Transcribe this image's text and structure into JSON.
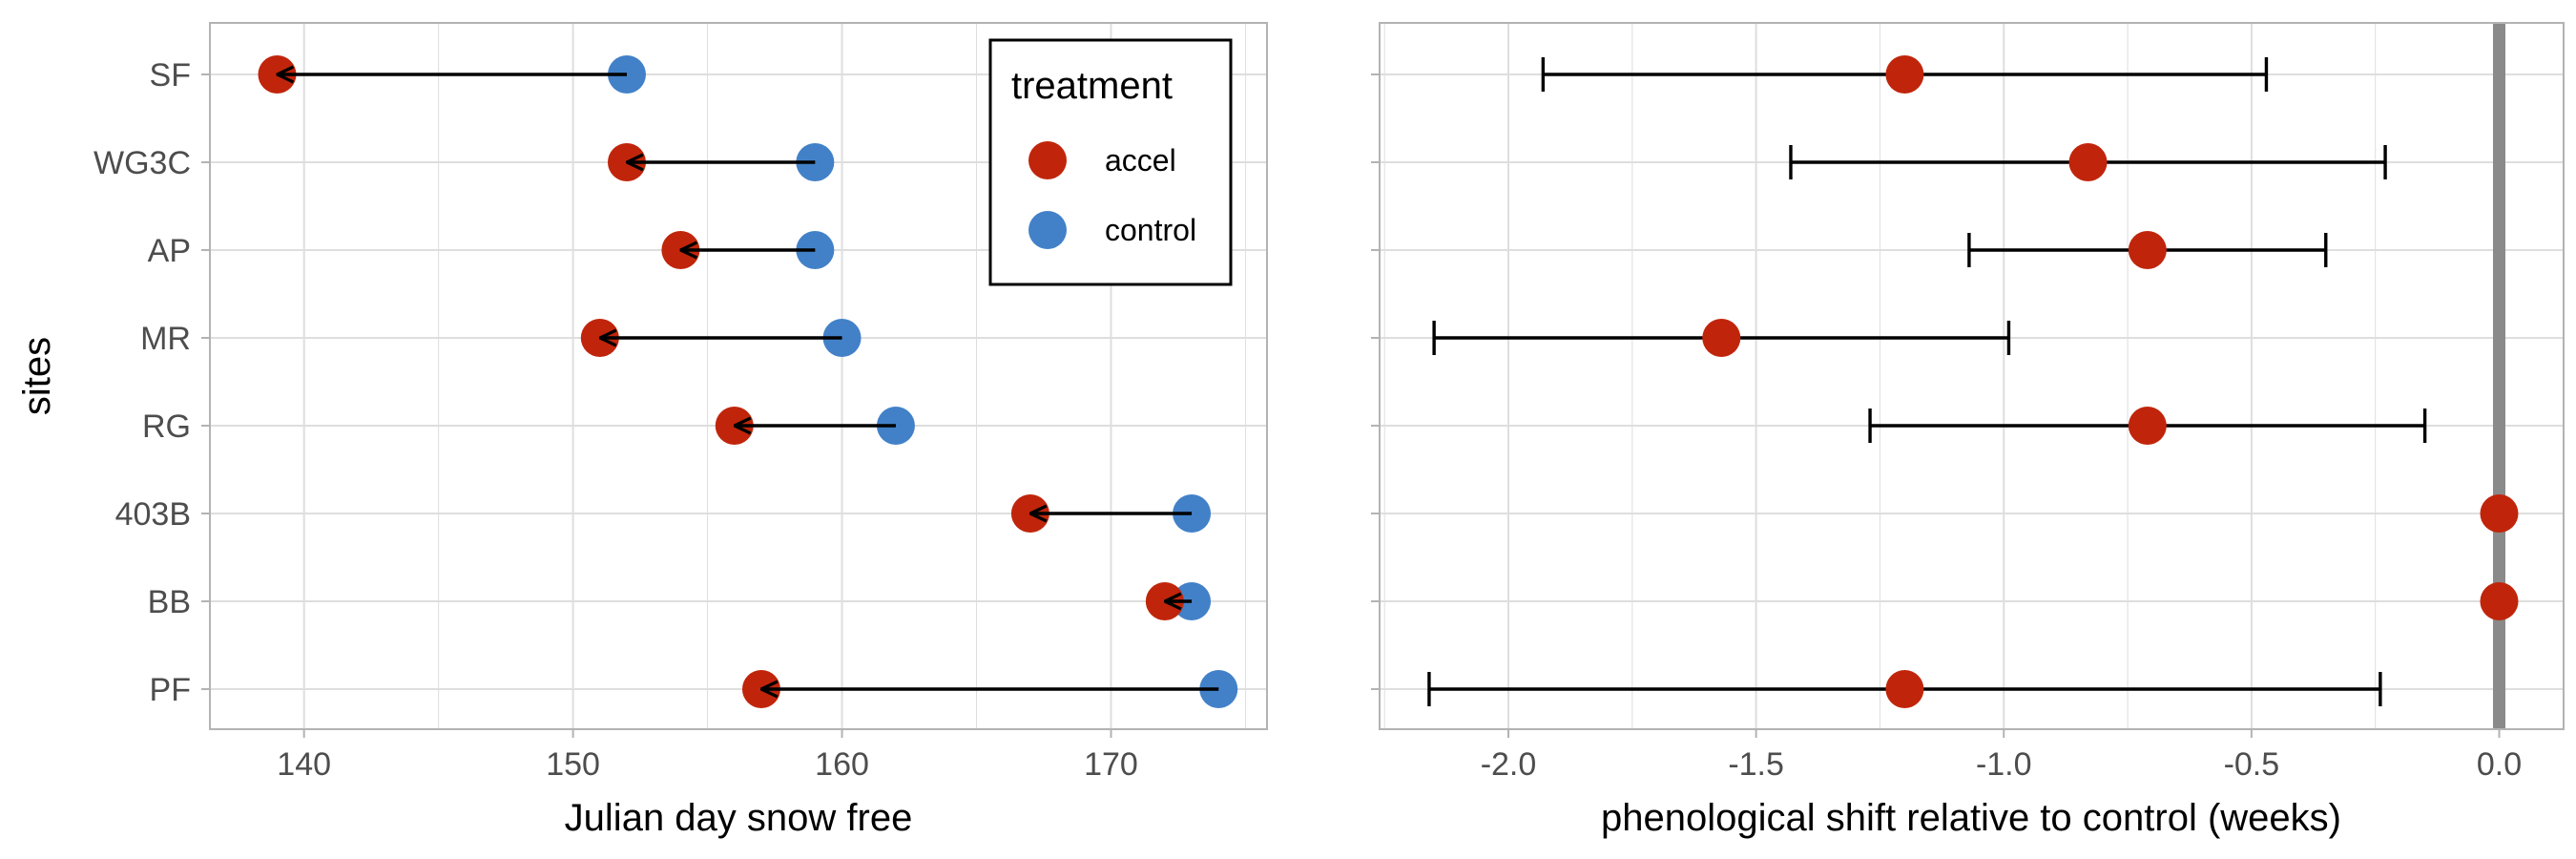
{
  "colors": {
    "accel": "#c0250b",
    "control": "#4281c8",
    "arrow": "#000000",
    "grid": "#dedede",
    "frame": "#b3b3b3",
    "zero_line": "#8a8a8a"
  },
  "chart_data": [
    {
      "type": "dumbbell",
      "xlabel": "Julian day snow free",
      "ylabel": "sites",
      "xlim": [
        136.5,
        175.8
      ],
      "xticks": [
        140,
        150,
        160,
        170
      ],
      "x_tick_labels": [
        "140",
        "150",
        "160",
        "170"
      ],
      "grid": true,
      "categories": [
        "SF",
        "WG3C",
        "AP",
        "MR",
        "RG",
        "403B",
        "BB",
        "PF"
      ],
      "series": [
        {
          "name": "accel",
          "values": [
            139,
            152,
            154,
            151,
            156,
            167,
            172,
            157
          ]
        },
        {
          "name": "control",
          "values": [
            152,
            159,
            159,
            160,
            162,
            173,
            173,
            174
          ]
        }
      ],
      "arrows": "control-to-accel",
      "legend": {
        "title": "treatment",
        "position": "top-right",
        "entries": [
          "accel",
          "control"
        ]
      }
    },
    {
      "type": "errorbar",
      "xlabel": "phenological shift relative to control (weeks)",
      "ylabel": "",
      "xlim": [
        -2.26,
        0.13
      ],
      "xticks": [
        -2.0,
        -1.5,
        -1.0,
        -0.5,
        0.0
      ],
      "x_tick_labels": [
        "-2.0",
        "-1.5",
        "-1.0",
        "-0.5",
        "0.0"
      ],
      "grid": true,
      "categories": [
        "SF",
        "WG3C",
        "AP",
        "MR",
        "RG",
        "403B",
        "BB",
        "PF"
      ],
      "estimate": [
        -1.2,
        -0.83,
        -0.71,
        -1.57,
        -0.71,
        0.0,
        0.0,
        -1.2
      ],
      "lower": [
        -1.93,
        -1.43,
        -1.07,
        -2.15,
        -1.27,
        0.0,
        0.0,
        -2.16
      ],
      "upper": [
        -0.47,
        -0.23,
        -0.35,
        -0.99,
        -0.15,
        0.0,
        0.0,
        -0.24
      ],
      "reference_line": 0.0
    }
  ]
}
